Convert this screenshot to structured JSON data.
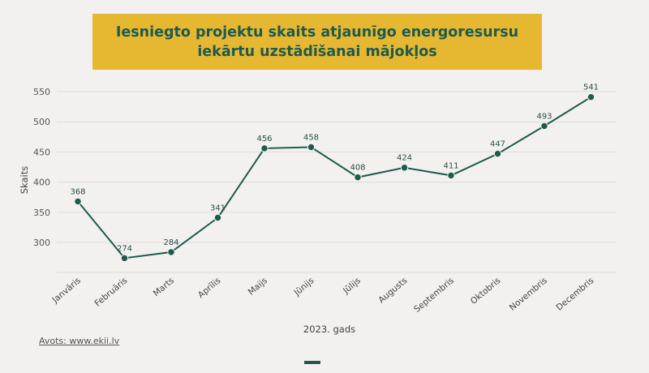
{
  "title": {
    "line1": "Iesniegto projektu skaits atjaunīgo energoresursu",
    "line2": "iekārtu uzstādīšanai mājokļos"
  },
  "source": "Avots: www.ekii.lv",
  "colors": {
    "line": "#1f5a4c",
    "title_bg": "#e6b731",
    "grid": "#dcdcdc"
  },
  "chart_data": {
    "type": "line",
    "categories": [
      "Janvāris",
      "Februāris",
      "Marts",
      "Aprīlis",
      "Maijs",
      "Jūnijs",
      "Jūlijs",
      "Augusts",
      "Septembris",
      "Oktobris",
      "Novembris",
      "Decembris"
    ],
    "values": [
      368,
      274,
      284,
      341,
      456,
      458,
      408,
      424,
      411,
      447,
      493,
      541
    ],
    "xlabel": "2023. gads",
    "ylabel": "Skaits",
    "yticks": [
      300,
      350,
      400,
      450,
      500,
      550
    ],
    "ylim": [
      250,
      560
    ],
    "grid": true
  }
}
